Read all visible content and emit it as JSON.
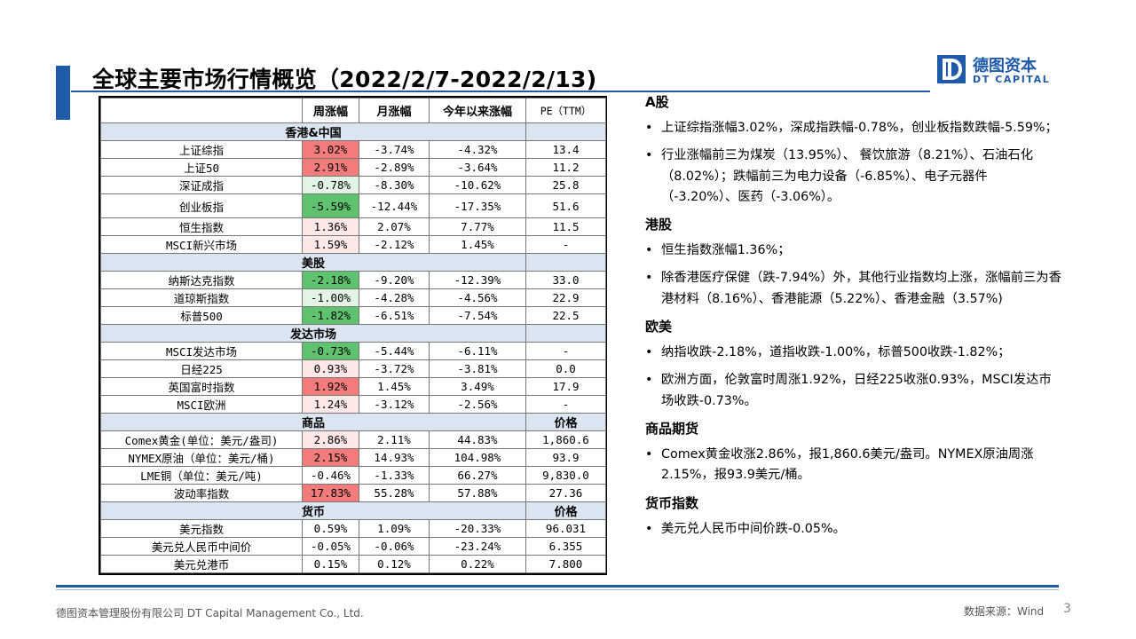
{
  "title": "全球主要市场行情概览（2022/2/7-2022/2/13)",
  "logo": {
    "cn": "德图资本",
    "en": "DT CAPITAL",
    "mark": "D"
  },
  "colors": {
    "accent": "#1f5ba8",
    "section_bg": "#dbe5f1",
    "up_strong": "#f27b7b",
    "up_light": "#fde8e8",
    "down_strong": "#5fc26e",
    "down_light": "#e2f4e4"
  },
  "table": {
    "headers": [
      "",
      "周涨幅",
      "月涨幅",
      "今年以来涨幅",
      "PE（TTM）"
    ],
    "sections": [
      {
        "label": "香港&中国",
        "rows": [
          {
            "name": "上证综指",
            "w": "3.02%",
            "m": "-3.74%",
            "y": "-4.32%",
            "pe": "13.4",
            "hl": "up_strong"
          },
          {
            "name": "上证50",
            "w": "2.91%",
            "m": "-2.89%",
            "y": "-3.64%",
            "pe": "11.2",
            "hl": "up_strong"
          },
          {
            "name": "深证成指",
            "w": "-0.78%",
            "m": "-8.30%",
            "y": "-10.62%",
            "pe": "25.8",
            "hl": "down_light"
          },
          {
            "name": "创业板指",
            "w": "-5.59%",
            "m": "-12.44%",
            "y": "-17.35%",
            "pe": "51.6",
            "hl": "down_strong",
            "tall": true
          },
          {
            "name": "恒生指数",
            "w": "1.36%",
            "m": "2.07%",
            "y": "7.77%",
            "pe": "11.5",
            "hl": "up_light"
          },
          {
            "name": "MSCI新兴市场",
            "w": "1.59%",
            "m": "-2.12%",
            "y": "1.45%",
            "pe": "-",
            "hl": "up_light"
          }
        ]
      },
      {
        "label": "美股",
        "rows": [
          {
            "name": "纳斯达克指数",
            "w": "-2.18%",
            "m": "-9.20%",
            "y": "-12.39%",
            "pe": "33.0",
            "hl": "down_strong"
          },
          {
            "name": "道琼斯指数",
            "w": "-1.00%",
            "m": "-4.28%",
            "y": "-4.56%",
            "pe": "22.9",
            "hl": "down_light"
          },
          {
            "name": "标普500",
            "w": "-1.82%",
            "m": "-6.51%",
            "y": "-7.54%",
            "pe": "22.5",
            "hl": "down_strong"
          }
        ]
      },
      {
        "label": "发达市场",
        "rows": [
          {
            "name": "MSCI发达市场",
            "w": "-0.73%",
            "m": "-5.44%",
            "y": "-6.11%",
            "pe": "-",
            "hl": "down_strong"
          },
          {
            "name": "日经225",
            "w": "0.93%",
            "m": "-3.72%",
            "y": "-3.81%",
            "pe": "0.0",
            "hl": "up_light"
          },
          {
            "name": "英国富时指数",
            "w": "1.92%",
            "m": "1.45%",
            "y": "3.49%",
            "pe": "17.9",
            "hl": "up_strong"
          },
          {
            "name": "MSCI欧洲",
            "w": "1.24%",
            "m": "-3.12%",
            "y": "-2.56%",
            "pe": "-",
            "hl": "up_light"
          }
        ]
      },
      {
        "label": "商品",
        "last_header": "价格",
        "rows": [
          {
            "name": "Comex黄金(单位：美元/盎司)",
            "w": "2.86%",
            "m": "2.11%",
            "y": "44.83%",
            "pe": "1,860.6",
            "hl": "up_light"
          },
          {
            "name": "NYMEX原油（单位：美元/桶)",
            "w": "2.15%",
            "m": "14.93%",
            "y": "104.98%",
            "pe": "93.9",
            "hl": "up_strong"
          },
          {
            "name": "LME铜（单位：美元/吨)",
            "w": "-0.46%",
            "m": "-1.33%",
            "y": "66.27%",
            "pe": "9,830.0",
            "hl": "none"
          },
          {
            "name": "波动率指数",
            "w": "17.83%",
            "m": "55.28%",
            "y": "57.88%",
            "pe": "27.36",
            "hl": "up_strong"
          }
        ]
      },
      {
        "label": "货币",
        "last_header": "价格",
        "rows": [
          {
            "name": "美元指数",
            "w": "0.59%",
            "m": "1.09%",
            "y": "-20.33%",
            "pe": "96.031",
            "hl": "none"
          },
          {
            "name": "美元兑人民币中间价",
            "w": "-0.05%",
            "m": "-0.06%",
            "y": "-23.24%",
            "pe": "6.355",
            "hl": "none"
          },
          {
            "name": "美元兑港币",
            "w": "0.15%",
            "m": "0.12%",
            "y": "0.22%",
            "pe": "7.800",
            "hl": "none"
          }
        ]
      }
    ]
  },
  "notes": [
    {
      "heading": "A股",
      "bullets": [
        "上证综指涨幅3.02%，深成指跌幅-0.78%，创业板指数跌幅-5.59%；",
        "行业涨幅前三为煤炭（13.95%）、 餐饮旅游（8.21%）、石油石化（8.02%）；跌幅前三为电力设备（-6.85%）、电子元器件（-3.20%）、医药（-3.06%）。"
      ]
    },
    {
      "heading": "港股",
      "bullets": [
        "恒生指数涨幅1.36%；",
        "除香港医疗保健（跌-7.94%）外，其他行业指数均上涨，涨幅前三为香港材料（8.16%）、香港能源（5.22%）、香港金融（3.57%)"
      ]
    },
    {
      "heading": "欧美",
      "bullets": [
        "纳指收跌-2.18%，道指收跌-1.00%，标普500收跌-1.82%；",
        "欧洲方面，伦敦富时周涨1.92%，日经225收涨0.93%，MSCI发达市场收跌-0.73%。"
      ]
    },
    {
      "heading": "商品期货",
      "bullets": [
        "Comex黄金收涨2.86%，报1,860.6美元/盎司。NYMEX原油周涨2.15%，报93.9美元/桶。"
      ]
    },
    {
      "heading": "货币指数",
      "bullets": [
        "美元兑人民币中间价跌-0.05%。"
      ]
    }
  ],
  "footer": {
    "company": "德图资本管理股份有限公司 DT Capital Management Co., Ltd.",
    "source": "数据来源：Wind",
    "page": "3"
  }
}
